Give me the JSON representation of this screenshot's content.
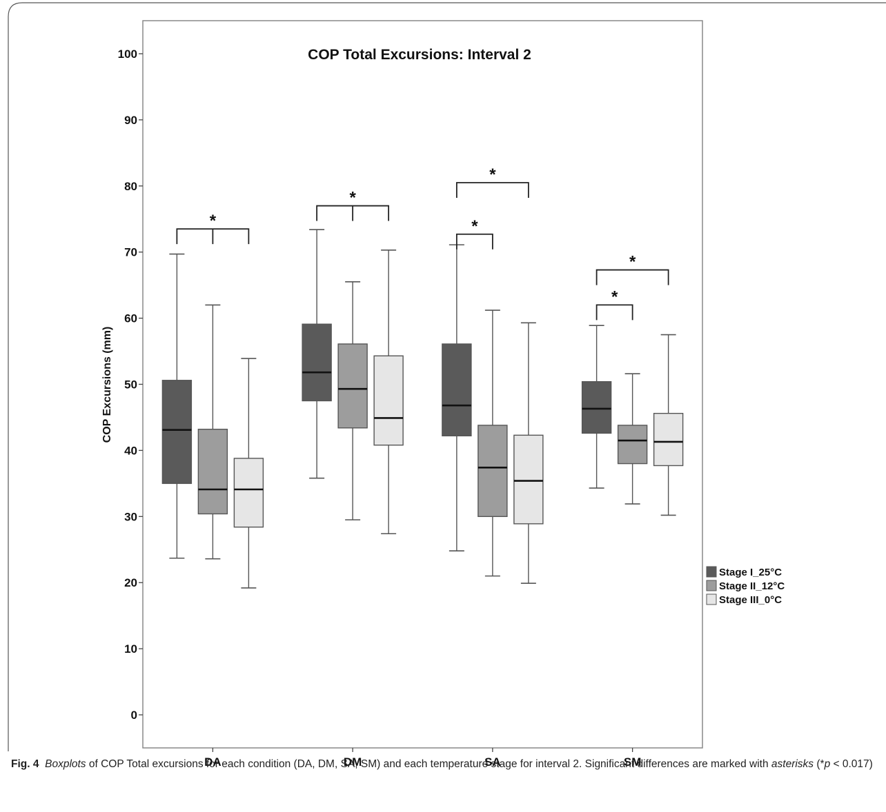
{
  "chart_data": {
    "type": "boxplot",
    "title": "COP Total Excursions: Interval 2",
    "ylabel": "COP Excursions (mm)",
    "xlabel": "",
    "ylim": [
      -5,
      105
    ],
    "yticks": [
      0,
      10,
      20,
      30,
      40,
      50,
      60,
      70,
      80,
      90,
      100
    ],
    "categories": [
      "DA",
      "DM",
      "SA",
      "SM"
    ],
    "legend_position": "right",
    "series": [
      {
        "name": "Stage I_25°C",
        "color": "#5a5a5a",
        "boxes": [
          {
            "min": 23.7,
            "q1": 35.0,
            "median": 43.1,
            "q3": 50.6,
            "max": 69.7
          },
          {
            "min": 35.8,
            "q1": 47.5,
            "median": 51.8,
            "q3": 59.1,
            "max": 73.4
          },
          {
            "min": 24.8,
            "q1": 42.2,
            "median": 46.8,
            "q3": 56.1,
            "max": 71.1
          },
          {
            "min": 34.3,
            "q1": 42.6,
            "median": 46.3,
            "q3": 50.4,
            "max": 58.9
          }
        ]
      },
      {
        "name": "Stage II_12°C",
        "color": "#9d9d9d",
        "boxes": [
          {
            "min": 23.6,
            "q1": 30.4,
            "median": 34.1,
            "q3": 43.2,
            "max": 62.0
          },
          {
            "min": 29.5,
            "q1": 43.4,
            "median": 49.3,
            "q3": 56.1,
            "max": 65.5
          },
          {
            "min": 21.0,
            "q1": 30.0,
            "median": 37.4,
            "q3": 43.8,
            "max": 61.2
          },
          {
            "min": 31.9,
            "q1": 38.0,
            "median": 41.5,
            "q3": 43.8,
            "max": 51.6
          }
        ]
      },
      {
        "name": "Stage III_0°C",
        "color": "#e6e6e6",
        "boxes": [
          {
            "min": 19.2,
            "q1": 28.4,
            "median": 34.1,
            "q3": 38.8,
            "max": 53.9
          },
          {
            "min": 27.4,
            "q1": 40.8,
            "median": 44.9,
            "q3": 54.3,
            "max": 70.3
          },
          {
            "min": 19.9,
            "q1": 28.9,
            "median": 35.4,
            "q3": 42.3,
            "max": 59.3
          },
          {
            "min": 30.2,
            "q1": 37.7,
            "median": 41.3,
            "q3": 45.6,
            "max": 57.5
          }
        ]
      }
    ],
    "significance": [
      {
        "category": "DA",
        "from_series": 0,
        "to_series": 2,
        "middle_tick": 1,
        "y": 73.5,
        "label": "*"
      },
      {
        "category": "DM",
        "from_series": 0,
        "to_series": 2,
        "middle_tick": 1,
        "y": 77.0,
        "label": "*"
      },
      {
        "category": "SA",
        "from_series": 0,
        "to_series": 1,
        "y": 72.7,
        "label": "*"
      },
      {
        "category": "SA",
        "from_series": 0,
        "to_series": 2,
        "y": 80.5,
        "label": "*"
      },
      {
        "category": "SM",
        "from_series": 0,
        "to_series": 1,
        "y": 62.0,
        "label": "*"
      },
      {
        "category": "SM",
        "from_series": 0,
        "to_series": 2,
        "y": 67.3,
        "label": "*"
      }
    ]
  },
  "caption": {
    "fig_no": "Fig. 4",
    "part1": "Boxplots",
    "part2": " of COP Total excursions for each condition (DA, DM, SA, SM) and each temperature stage for interval 2. Significant differences are marked with ",
    "part3": "asterisks",
    "part4": " (*",
    "part5": "p",
    "part6": " < 0.017)"
  }
}
